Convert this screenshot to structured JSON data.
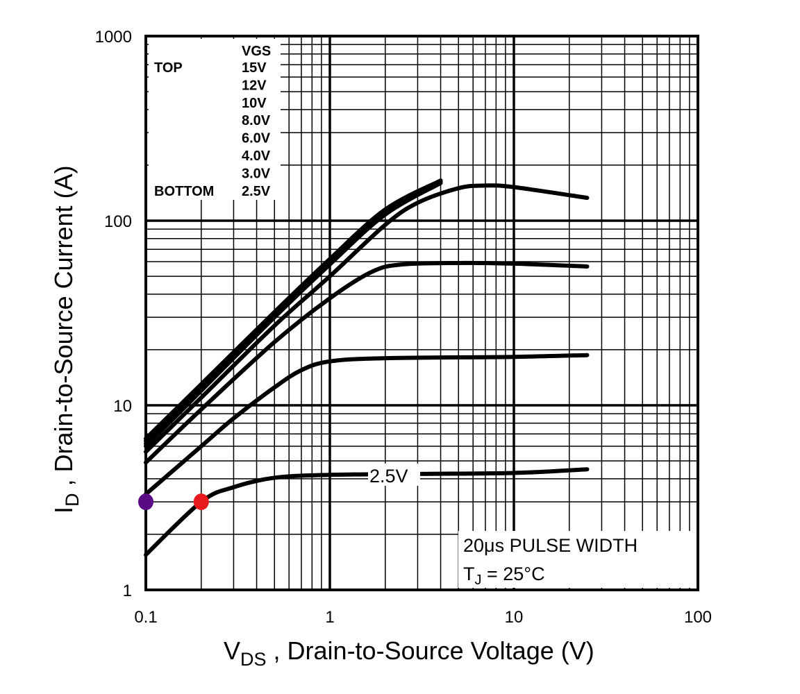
{
  "chart_data": {
    "type": "line",
    "title": "",
    "xlabel": {
      "main": "V",
      "sub": "DS",
      "rest": " , Drain-to-Source Voltage (V)"
    },
    "ylabel": {
      "main": "I",
      "sub": "D",
      "rest": " , Drain-to-Source Current (A)"
    },
    "xscale": "log",
    "yscale": "log",
    "xlim": [
      0.1,
      100
    ],
    "ylim": [
      1,
      1000
    ],
    "xticks": [
      "0.1",
      "1",
      "10",
      "100"
    ],
    "yticks": [
      "1",
      "10",
      "100",
      "1000"
    ],
    "grid": true,
    "legend": {
      "placement": "top-left",
      "header": "VGS",
      "top_label": "TOP",
      "bottom_label": "BOTTOM",
      "entries": [
        "15V",
        "12V",
        "10V",
        "8.0V",
        "6.0V",
        "4.0V",
        "3.0V",
        "2.5V"
      ]
    },
    "series": [
      {
        "name": "15V",
        "x": [
          0.1,
          0.2,
          0.5,
          1,
          2,
          4
        ],
        "y": [
          6.6,
          13,
          32,
          62,
          115,
          165
        ]
      },
      {
        "name": "12V",
        "x": [
          0.1,
          0.2,
          0.5,
          1,
          2,
          4
        ],
        "y": [
          6.4,
          12.7,
          31,
          61,
          113,
          164
        ]
      },
      {
        "name": "10V",
        "x": [
          0.1,
          0.2,
          0.5,
          1,
          2,
          4
        ],
        "y": [
          6.2,
          12.3,
          30.5,
          60,
          112,
          163
        ]
      },
      {
        "name": "8.0V",
        "x": [
          0.1,
          0.2,
          0.5,
          1,
          2,
          4
        ],
        "y": [
          6.0,
          12,
          30,
          58,
          108,
          160
        ]
      },
      {
        "name": "6.0V",
        "x": [
          0.1,
          0.2,
          0.5,
          1,
          2,
          3,
          5,
          7,
          10,
          25
        ],
        "y": [
          5.6,
          11,
          27,
          50,
          95,
          125,
          150,
          155,
          152,
          133
        ]
      },
      {
        "name": "4.0V",
        "x": [
          0.1,
          0.2,
          0.5,
          1,
          1.7,
          2.5,
          5,
          10,
          25
        ],
        "y": [
          4.9,
          9.5,
          22,
          38,
          53,
          58,
          59,
          58.5,
          56.5
        ]
      },
      {
        "name": "3.0V",
        "x": [
          0.1,
          0.2,
          0.3,
          0.5,
          0.7,
          1,
          2,
          10,
          25
        ],
        "y": [
          3.3,
          6.0,
          8.5,
          12.5,
          15.5,
          17.3,
          18,
          18.3,
          18.7
        ]
      },
      {
        "name": "2.5V",
        "x": [
          0.1,
          0.2,
          0.3,
          0.5,
          1,
          3,
          10,
          25
        ],
        "y": [
          1.55,
          3.0,
          3.6,
          4.05,
          4.2,
          4.25,
          4.3,
          4.5
        ]
      }
    ],
    "markers": [
      {
        "x": 0.1,
        "y": 3.0,
        "color": "#5a0a84"
      },
      {
        "x": 0.2,
        "y": 3.0,
        "color": "#e8191c"
      }
    ],
    "annotations": {
      "curve_label": "2.5V",
      "pulse": "20μs PULSE WIDTH",
      "tj_main": "T",
      "tj_sub": "J",
      "tj_rest": " = 25°C"
    }
  }
}
